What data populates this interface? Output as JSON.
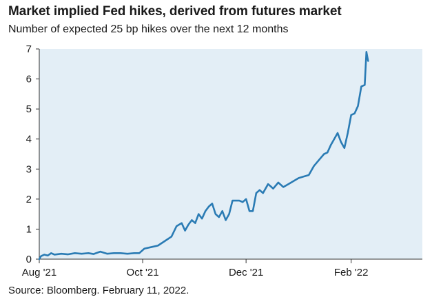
{
  "title": "Market implied Fed hikes, derived from futures market",
  "subtitle": "Number of expected 25 bp hikes over the next 12 months",
  "source": "Source: Bloomberg. February 11, 2022.",
  "colors": {
    "plot_background": "#e3eef6",
    "line": "#2a7bb4",
    "axis": "#333333"
  },
  "chart_data": {
    "type": "line",
    "title": "Market implied Fed hikes, derived from futures market",
    "subtitle": "Number of expected 25 bp hikes over the next 12 months",
    "xlabel": "",
    "ylabel": "",
    "ylim": [
      0,
      7
    ],
    "yticks": [
      "0",
      "1",
      "2",
      "3",
      "4",
      "5",
      "6",
      "7"
    ],
    "xlim": [
      "2021-08-01",
      "2022-03-15"
    ],
    "xticks": [
      {
        "date": "2021-08-01",
        "label": "Aug '21"
      },
      {
        "date": "2021-10-01",
        "label": "Oct '21"
      },
      {
        "date": "2021-12-01",
        "label": "Dec '21"
      },
      {
        "date": "2022-02-01",
        "label": "Feb '22"
      }
    ],
    "grid": false,
    "legend": "none",
    "series": [
      {
        "x": [
          "2021-08-01",
          "2021-08-02",
          "2021-08-04",
          "2021-08-06",
          "2021-08-08",
          "2021-08-10",
          "2021-08-14",
          "2021-08-18",
          "2021-08-22",
          "2021-08-26",
          "2021-08-30",
          "2021-09-02",
          "2021-09-06",
          "2021-09-10",
          "2021-09-14",
          "2021-09-18",
          "2021-09-22",
          "2021-09-26",
          "2021-09-29",
          "2021-10-02",
          "2021-10-06",
          "2021-10-10",
          "2021-10-14",
          "2021-10-18",
          "2021-10-21",
          "2021-10-24",
          "2021-10-26",
          "2021-10-28",
          "2021-10-30",
          "2021-11-01",
          "2021-11-03",
          "2021-11-05",
          "2021-11-07",
          "2021-11-09",
          "2021-11-11",
          "2021-11-13",
          "2021-11-15",
          "2021-11-17",
          "2021-11-19",
          "2021-11-21",
          "2021-11-23",
          "2021-11-25",
          "2021-11-27",
          "2021-11-29",
          "2021-12-01",
          "2021-12-03",
          "2021-12-05",
          "2021-12-07",
          "2021-12-09",
          "2021-12-11",
          "2021-12-14",
          "2021-12-17",
          "2021-12-20",
          "2021-12-23",
          "2021-12-26",
          "2021-12-29",
          "2022-01-01",
          "2022-01-04",
          "2022-01-07",
          "2022-01-10",
          "2022-01-13",
          "2022-01-16",
          "2022-01-18",
          "2022-01-20",
          "2022-01-22",
          "2022-01-24",
          "2022-01-26",
          "2022-01-28",
          "2022-01-30",
          "2022-02-01",
          "2022-02-03",
          "2022-02-05",
          "2022-02-07",
          "2022-02-09",
          "2022-02-10",
          "2022-02-11"
        ],
        "y": [
          0.0,
          0.1,
          0.15,
          0.12,
          0.2,
          0.15,
          0.18,
          0.16,
          0.2,
          0.18,
          0.2,
          0.17,
          0.25,
          0.18,
          0.2,
          0.2,
          0.18,
          0.2,
          0.2,
          0.35,
          0.4,
          0.45,
          0.6,
          0.75,
          1.1,
          1.2,
          0.95,
          1.15,
          1.3,
          1.2,
          1.5,
          1.35,
          1.6,
          1.75,
          1.85,
          1.5,
          1.4,
          1.6,
          1.3,
          1.5,
          1.95,
          1.95,
          1.95,
          1.9,
          2.0,
          1.6,
          1.6,
          2.2,
          2.3,
          2.2,
          2.5,
          2.35,
          2.55,
          2.4,
          2.5,
          2.6,
          2.7,
          2.75,
          2.8,
          3.1,
          3.3,
          3.5,
          3.55,
          3.8,
          4.0,
          4.2,
          3.9,
          3.7,
          4.2,
          4.8,
          4.85,
          5.1,
          5.75,
          5.8,
          6.9,
          6.6
        ]
      }
    ]
  }
}
